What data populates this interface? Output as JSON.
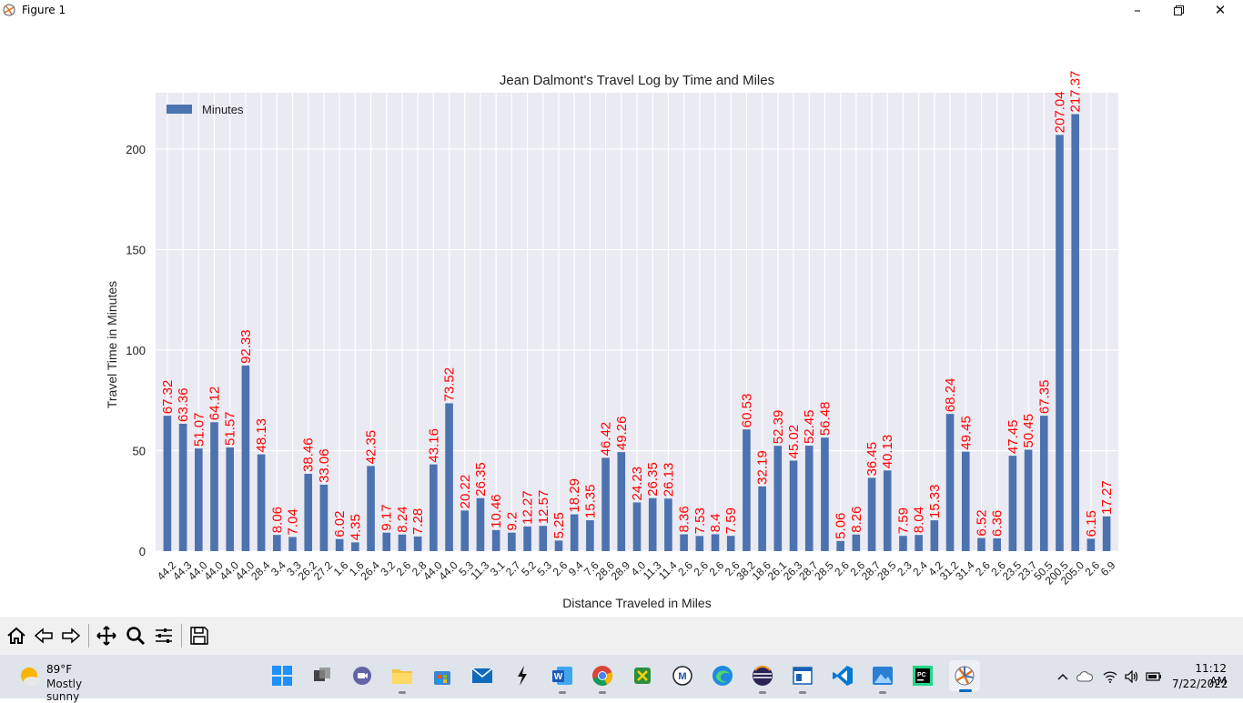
{
  "window": {
    "title": "Figure 1"
  },
  "chart_data": {
    "type": "bar",
    "title": "Jean Dalmont's Travel Log by Time and Miles",
    "xlabel": "Distance Traveled in Miles",
    "ylabel": "Travel Time in Minutes",
    "ylim": [
      0,
      228
    ],
    "yticks": [
      0,
      50,
      100,
      150,
      200
    ],
    "legend": "top-left",
    "grid": true,
    "colors": {
      "bar": "#4c72b0",
      "label": "#ff0000",
      "plot_bg": "#eaeaf2",
      "grid": "#ffffff"
    },
    "categories": [
      "44.2",
      "44.3",
      "44.0",
      "44.0",
      "44.0",
      "44.0",
      "28.4",
      "3.4",
      "3.3",
      "26.2",
      "27.2",
      "1.6",
      "1.6",
      "26.4",
      "3.2",
      "2.6",
      "2.8",
      "44.0",
      "44.0",
      "5.3",
      "11.3",
      "3.1",
      "2.7",
      "5.2",
      "5.3",
      "2.6",
      "9.4",
      "7.6",
      "28.6",
      "28.9",
      "4.0",
      "11.3",
      "11.4",
      "2.6",
      "2.6",
      "2.6",
      "2.6",
      "38.2",
      "18.6",
      "26.1",
      "26.3",
      "28.7",
      "28.5",
      "2.6",
      "2.6",
      "28.7",
      "28.5",
      "2.3",
      "2.4",
      "4.2",
      "31.2",
      "31.4",
      "2.6",
      "2.6",
      "23.5",
      "23.7",
      "50.5",
      "200.5",
      "205.0",
      "2.6",
      "6.9"
    ],
    "series": [
      {
        "name": "Minutes",
        "values": [
          67.32,
          63.36,
          51.07,
          64.12,
          51.57,
          92.33,
          48.13,
          8.06,
          7.04,
          38.46,
          33.06,
          6.02,
          4.35,
          42.35,
          9.17,
          8.24,
          7.28,
          43.16,
          73.52,
          20.22,
          26.35,
          10.46,
          9.2,
          12.27,
          12.57,
          5.25,
          18.29,
          15.35,
          46.42,
          49.26,
          24.23,
          26.35,
          26.13,
          8.36,
          7.53,
          8.4,
          7.59,
          60.53,
          32.19,
          52.39,
          45.02,
          52.45,
          56.48,
          5.06,
          8.26,
          36.45,
          40.13,
          7.59,
          8.04,
          15.33,
          68.24,
          49.45,
          6.52,
          6.36,
          47.45,
          50.45,
          67.35,
          207.04,
          217.37,
          6.15,
          17.27
        ]
      }
    ]
  },
  "toolbar": {
    "items": [
      "home",
      "back",
      "forward",
      "pan",
      "zoom",
      "configure",
      "save"
    ]
  },
  "taskbar": {
    "weather_temp": "89°F",
    "weather_desc": "Mostly sunny",
    "time": "11:12 AM",
    "date": "7/22/2022"
  }
}
